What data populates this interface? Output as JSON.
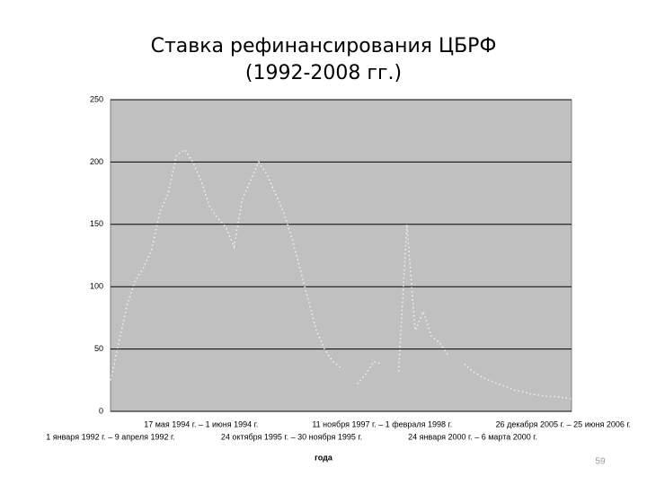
{
  "chart_data": {
    "type": "line",
    "title": "Ставка рефинансирования ЦБРФ",
    "subtitle": "(1992-2008 гг.)",
    "x_label": "года",
    "categories": [
      "1 января 1992 г. – 9 апреля 1992 г.",
      null,
      null,
      null,
      null,
      null,
      null,
      null,
      null,
      null,
      null,
      "17 мая 1994 г. – 1 июня 1994 г.",
      null,
      null,
      null,
      null,
      null,
      null,
      null,
      null,
      null,
      null,
      "24 октября 1995 г. – 30 ноября 1995 г.",
      null,
      null,
      null,
      null,
      null,
      null,
      null,
      null,
      null,
      null,
      "11 ноября 1997 г. – 1 февраля 1998 г.",
      null,
      null,
      null,
      null,
      null,
      null,
      null,
      null,
      null,
      null,
      "24 января 2000 г. – 6 марта 2000 г.",
      null,
      null,
      null,
      null,
      null,
      null,
      null,
      null,
      null,
      null,
      "26 декабря 2005 г. – 25 июня 2006 г.",
      null
    ],
    "series": [
      {
        "name": "Ставка рефинансирования",
        "color": "#f2f2f2",
        "values": [
          25,
          55,
          85,
          105,
          115,
          130,
          160,
          175,
          205,
          210,
          200,
          185,
          165,
          155,
          148,
          132,
          170,
          185,
          200,
          190,
          175,
          160,
          140,
          115,
          90,
          65,
          50,
          40,
          35,
          null,
          22,
          30,
          40,
          38,
          null,
          32,
          150,
          65,
          80,
          60,
          55,
          45,
          null,
          38,
          32,
          28,
          25,
          22,
          20,
          17,
          16,
          14,
          13,
          12,
          12,
          11,
          10
        ]
      }
    ],
    "ylim": [
      0,
      250
    ],
    "yticks": [
      0,
      50,
      100,
      150,
      200,
      250
    ],
    "grid": true,
    "plot_color": "#c0c0c0"
  },
  "page_number": "59"
}
